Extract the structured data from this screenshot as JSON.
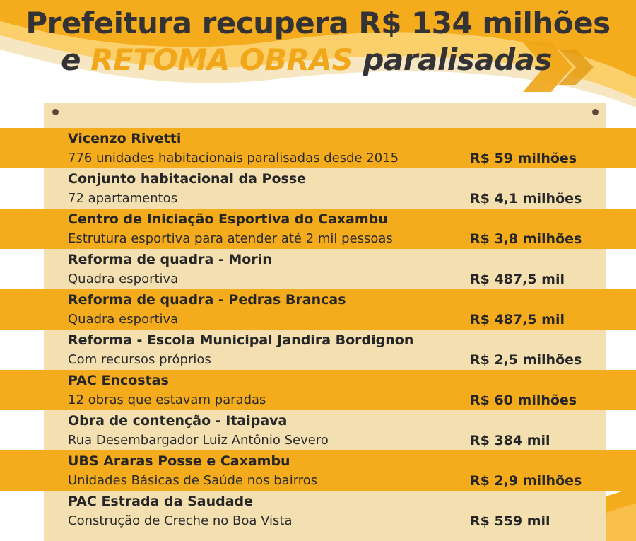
{
  "header": {
    "title_line1": "Prefeitura recupera R$ 134 milhões",
    "title_line2_start": "e ",
    "title_line2_accent": "RETOMA OBRAS",
    "title_line2_end": " paralisadas"
  },
  "colors": {
    "accent": "#f4ac1d",
    "board": "#f3dfb0",
    "text": "#333336"
  },
  "projects": [
    {
      "name": "Vicenzo Rivetti",
      "description": "776 unidades habitacionais paralisadas desde 2015",
      "amount": "R$ 59 milhões"
    },
    {
      "name": "Conjunto habitacional da Posse",
      "description": "72 apartamentos",
      "amount": "R$ 4,1 milhões"
    },
    {
      "name": "Centro de Iniciação Esportiva do Caxambu",
      "description": "Estrutura esportiva para atender até 2 mil pessoas",
      "amount": "R$ 3,8 milhões"
    },
    {
      "name": "Reforma de quadra - Morin",
      "description": "Quadra esportiva",
      "amount": "R$ 487,5 mil"
    },
    {
      "name": "Reforma de quadra - Pedras Brancas",
      "description": "Quadra esportiva",
      "amount": "R$ 487,5 mil"
    },
    {
      "name": "Reforma - Escola Municipal Jandira Bordignon",
      "description": "Com recursos próprios",
      "amount": "R$ 2,5 milhões"
    },
    {
      "name": "PAC Encostas",
      "description": "12 obras que estavam paradas",
      "amount": "R$ 60 milhões"
    },
    {
      "name": "Obra de contenção - Itaipava",
      "description": "Rua Desembargador Luiz Antônio Severo",
      "amount": "R$ 384 mil"
    },
    {
      "name": "UBS  Araras Posse e Caxambu",
      "description": "Unidades Básicas de Saúde nos bairros",
      "amount": "R$ 2,9 milhões"
    },
    {
      "name": "PAC Estrada da Saudade",
      "description": "Construção de Creche no  Boa Vista",
      "amount": "R$ 559 mil"
    }
  ]
}
